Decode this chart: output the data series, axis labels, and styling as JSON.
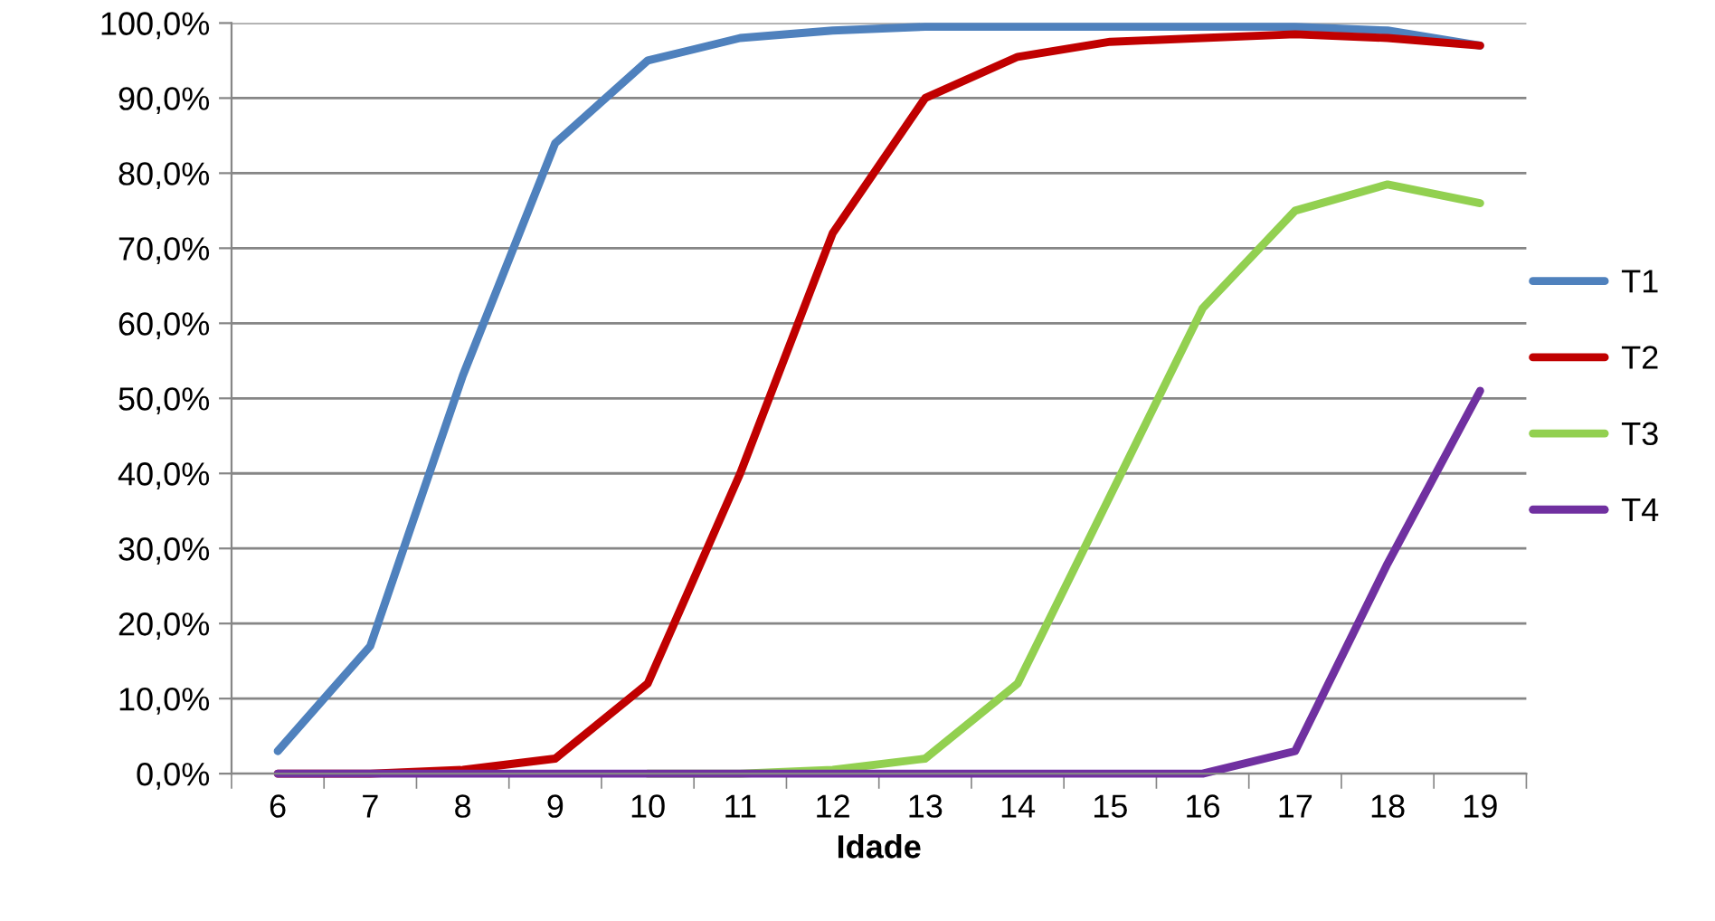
{
  "chart_data": {
    "type": "line",
    "xlabel": "Idade",
    "categories": [
      "6",
      "7",
      "8",
      "9",
      "10",
      "11",
      "12",
      "13",
      "14",
      "15",
      "16",
      "17",
      "18",
      "19"
    ],
    "series": [
      {
        "name": "T1",
        "color": "#4f81bd",
        "values": [
          3,
          17,
          53,
          84,
          95,
          98,
          99,
          99.5,
          99.5,
          99.5,
          99.5,
          99.5,
          99,
          97
        ]
      },
      {
        "name": "T2",
        "color": "#c00000",
        "values": [
          0,
          0,
          0.5,
          2,
          12,
          40,
          72,
          90,
          95.5,
          97.5,
          98,
          98.5,
          98,
          97
        ]
      },
      {
        "name": "T3",
        "color": "#92d050",
        "values": [
          null,
          null,
          null,
          null,
          0,
          0,
          0.5,
          2,
          12,
          37,
          62,
          75,
          78.5,
          76
        ]
      },
      {
        "name": "T4",
        "color": "#7030a0",
        "values": [
          0,
          0,
          0,
          0,
          0,
          0,
          0,
          0,
          0,
          0,
          0,
          3,
          28,
          51
        ]
      }
    ],
    "ylim": [
      0,
      100
    ],
    "yticks": [
      {
        "value": 0,
        "label": "0,0%"
      },
      {
        "value": 10,
        "label": "10,0%"
      },
      {
        "value": 20,
        "label": "20,0%"
      },
      {
        "value": 30,
        "label": "30,0%"
      },
      {
        "value": 40,
        "label": "40,0%"
      },
      {
        "value": 50,
        "label": "50,0%"
      },
      {
        "value": 60,
        "label": "60,0%"
      },
      {
        "value": 70,
        "label": "70,0%"
      },
      {
        "value": 80,
        "label": "80,0%"
      },
      {
        "value": 90,
        "label": "90,0%"
      },
      {
        "value": 100,
        "label": "100,0%"
      }
    ],
    "grid": "y",
    "legend": "right",
    "marker": "none",
    "line_style": "solid"
  }
}
